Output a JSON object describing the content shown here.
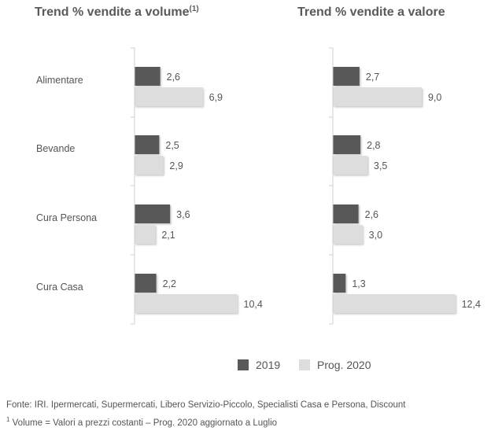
{
  "chart_data": [
    {
      "type": "bar",
      "orientation": "horizontal",
      "title": "Trend % vendite a volume",
      "title_note": "(1)",
      "categories": [
        "Alimentare",
        "Bevande",
        "Cura Persona",
        "Cura Casa"
      ],
      "series": [
        {
          "name": "2019",
          "values": [
            2.6,
            2.5,
            3.6,
            2.2
          ]
        },
        {
          "name": "Prog. 2020",
          "values": [
            6.9,
            2.9,
            2.1,
            10.4
          ]
        }
      ],
      "value_labels": [
        [
          "2,6",
          "2,5",
          "3,6",
          "2,2"
        ],
        [
          "6,9",
          "2,9",
          "2,1",
          "10,4"
        ]
      ],
      "xlim": [
        0,
        12.4
      ]
    },
    {
      "type": "bar",
      "orientation": "horizontal",
      "title": "Trend % vendite a valore",
      "categories": [
        "Alimentare",
        "Bevande",
        "Cura Persona",
        "Cura Casa"
      ],
      "series": [
        {
          "name": "2019",
          "values": [
            2.7,
            2.8,
            2.6,
            1.3
          ]
        },
        {
          "name": "Prog. 2020",
          "values": [
            9.0,
            3.5,
            3.0,
            12.4
          ]
        }
      ],
      "value_labels": [
        [
          "2,7",
          "2,8",
          "2,6",
          "1,3"
        ],
        [
          "9,0",
          "3,5",
          "3,0",
          "12,4"
        ]
      ],
      "xlim": [
        0,
        12.4
      ]
    }
  ],
  "legend": {
    "position": "bottom",
    "items": [
      {
        "label": "2019",
        "color": "#595959"
      },
      {
        "label": "Prog. 2020",
        "color": "#dddddd"
      }
    ]
  },
  "colors": {
    "series_2019": "#595959",
    "series_2020": "#dddddd",
    "axis": "#cfcfcf"
  },
  "source_text": "Fonte: IRI. Ipermercati, Supermercati, Libero Servizio-Piccolo, Specialisti Casa e Persona, Discount",
  "footnote_mark": "1",
  "footnote_text": " Volume = Valori a prezzi costanti – Prog. 2020 aggiornato a Luglio"
}
